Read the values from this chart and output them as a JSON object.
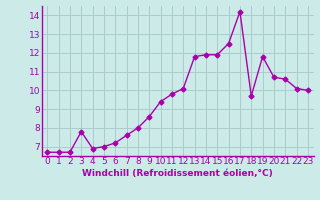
{
  "x": [
    0,
    1,
    2,
    3,
    4,
    5,
    6,
    7,
    8,
    9,
    10,
    11,
    12,
    13,
    14,
    15,
    16,
    17,
    18,
    19,
    20,
    21,
    22,
    23
  ],
  "y": [
    6.7,
    6.7,
    6.7,
    7.8,
    6.9,
    7.0,
    7.2,
    7.6,
    8.0,
    8.6,
    9.4,
    9.8,
    10.1,
    11.8,
    11.9,
    11.9,
    12.5,
    14.2,
    9.7,
    11.8,
    10.7,
    10.6,
    10.1,
    10.0
  ],
  "line_color": "#aa00aa",
  "marker": "D",
  "marker_size": 2.5,
  "linewidth": 1.0,
  "ylim": [
    6.5,
    14.5
  ],
  "xlim": [
    -0.5,
    23.5
  ],
  "yticks": [
    7,
    8,
    9,
    10,
    11,
    12,
    13,
    14
  ],
  "xtick_labels": [
    "0",
    "1",
    "2",
    "3",
    "4",
    "5",
    "6",
    "7",
    "8",
    "9",
    "10",
    "11",
    "12",
    "13",
    "14",
    "15",
    "16",
    "17",
    "18",
    "19",
    "20",
    "21",
    "22",
    "23"
  ],
  "xlabel": "Windchill (Refroidissement éolien,°C)",
  "xlabel_fontsize": 6.5,
  "tick_fontsize": 6.5,
  "background_color": "#cceae7",
  "grid_color": "#aacccc",
  "spine_color": "#aa00aa"
}
